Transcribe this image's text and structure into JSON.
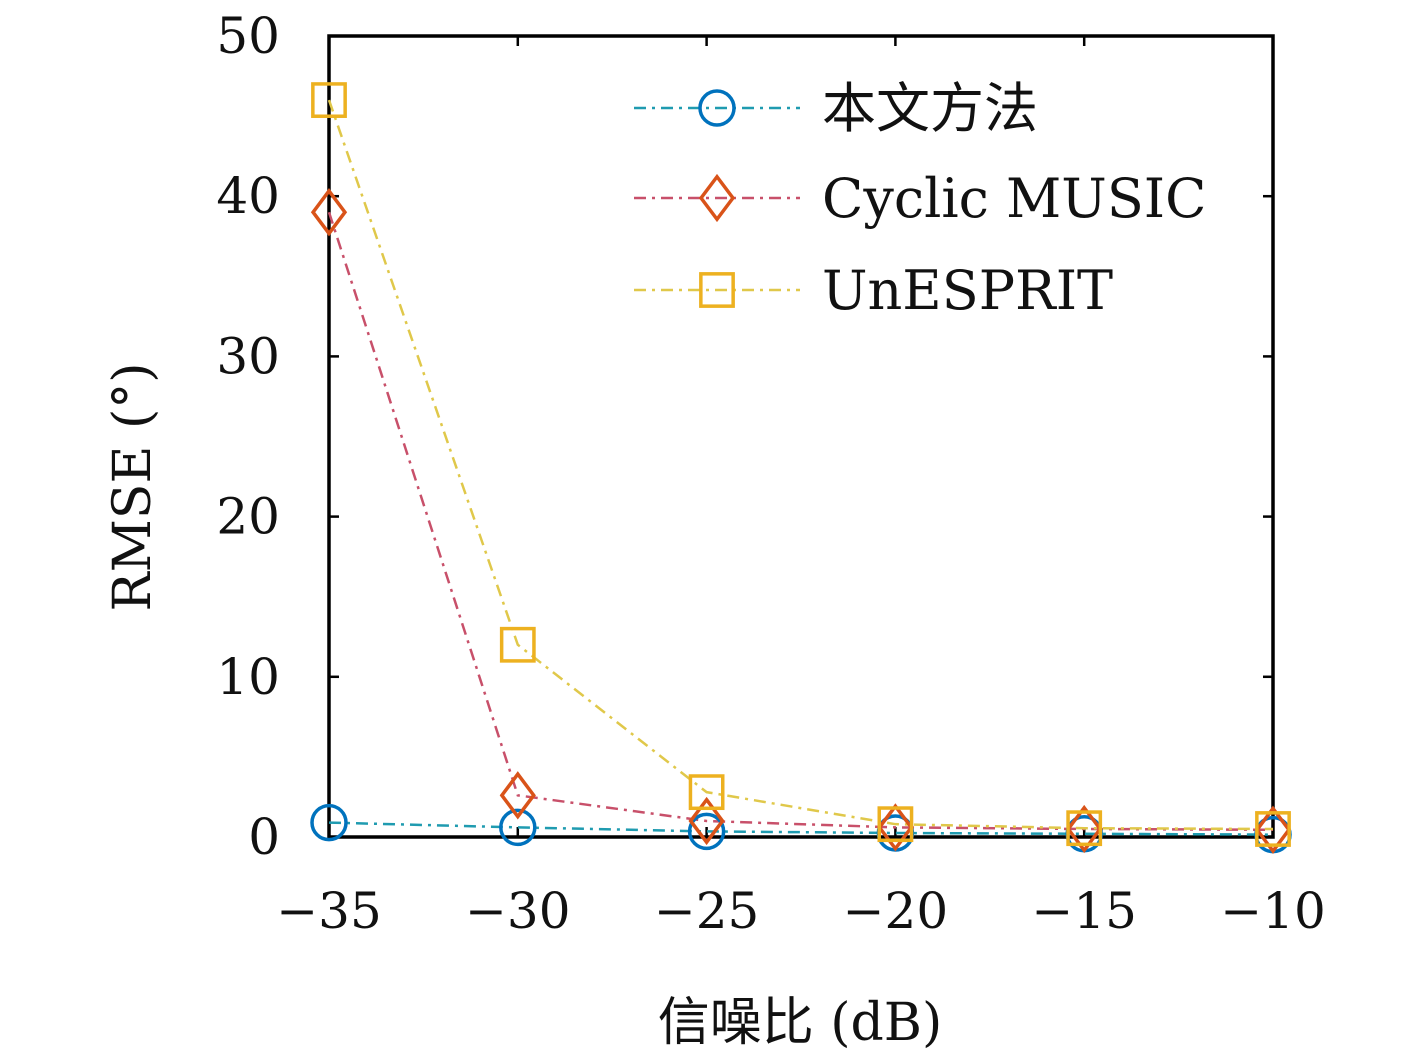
{
  "chart_data": {
    "type": "line",
    "xlabel": "信噪比 (dB)",
    "ylabel": "RMSE (°)",
    "x": [
      -35,
      -30,
      -25,
      -20,
      -15,
      -10
    ],
    "xticks": [
      -35,
      -30,
      -25,
      -20,
      -15,
      -10
    ],
    "xtick_labels": [
      "−35",
      "−30",
      "−25",
      "−20",
      "−15",
      "−10"
    ],
    "yticks": [
      0,
      10,
      20,
      30,
      40,
      50
    ],
    "ytick_labels": [
      "0",
      "10",
      "20",
      "30",
      "40",
      "50"
    ],
    "xlim": [
      -35,
      -10
    ],
    "ylim": [
      0,
      50
    ],
    "grid": false,
    "legend_position": "top-right",
    "series": [
      {
        "name": "本文方法",
        "values": [
          0.9,
          0.6,
          0.35,
          0.25,
          0.2,
          0.15
        ],
        "color": "#0072BD",
        "marker": "circle",
        "line_color": "#1f9bb0"
      },
      {
        "name": "Cyclic MUSIC",
        "values": [
          39,
          2.6,
          1.0,
          0.6,
          0.5,
          0.45
        ],
        "color": "#D95319",
        "marker": "diamond",
        "line_color": "#c8506a"
      },
      {
        "name": "UnESPRIT",
        "values": [
          46,
          12,
          2.8,
          0.8,
          0.55,
          0.5
        ],
        "color": "#EDB120",
        "marker": "square",
        "line_color": "#e0c84a"
      }
    ]
  }
}
